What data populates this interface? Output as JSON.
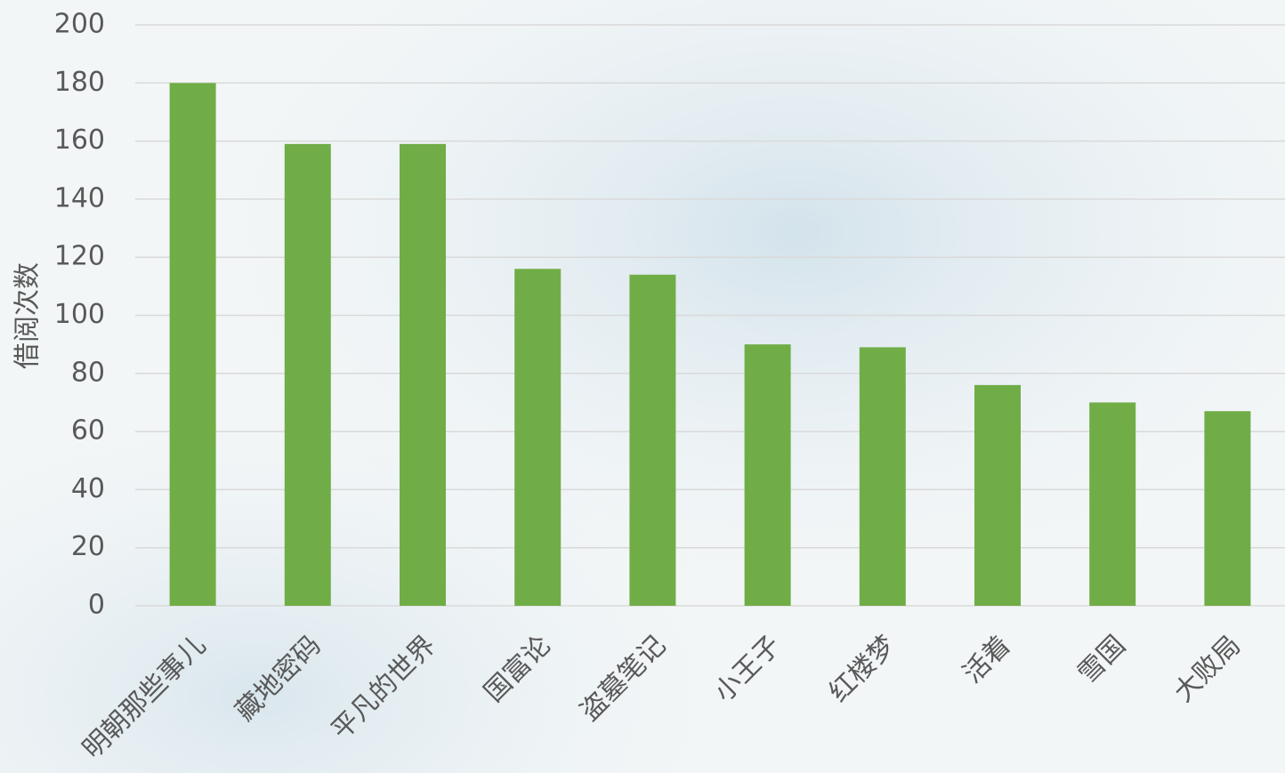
{
  "chart_data": {
    "type": "bar",
    "y_label": "借阅次数",
    "categories": [
      "明朝那些事儿",
      "藏地密码",
      "平凡的世界",
      "国富论",
      "盗墓笔记",
      "小王子",
      "红楼梦",
      "活着",
      "雪国",
      "大败局"
    ],
    "values": [
      180,
      159,
      159,
      116,
      114,
      90,
      89,
      76,
      70,
      67
    ],
    "color": "#70ad47",
    "ylim": [
      0,
      200
    ],
    "yticks": [
      0,
      20,
      40,
      60,
      80,
      100,
      120,
      140,
      160,
      180,
      200
    ],
    "grid": true
  }
}
